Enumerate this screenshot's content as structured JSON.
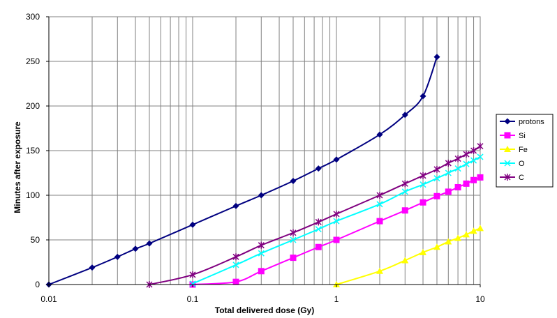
{
  "chart_data": {
    "type": "line",
    "title": "",
    "xlabel": "Total delivered dose (Gy)",
    "ylabel": "Minutes after exposure",
    "x_scale": "log",
    "xlim": [
      0.01,
      10
    ],
    "ylim": [
      0,
      300
    ],
    "x_ticks": [
      0.01,
      0.1,
      1,
      10
    ],
    "x_tick_labels": [
      "0.01",
      "0.1",
      "1",
      "10"
    ],
    "y_ticks": [
      0,
      50,
      100,
      150,
      200,
      250,
      300
    ],
    "y_tick_labels": [
      "0",
      "50",
      "100",
      "150",
      "200",
      "250",
      "300"
    ],
    "grid": true,
    "legend_position": "right",
    "series": [
      {
        "name": "protons",
        "color": "#000080",
        "marker": "diamond",
        "points": [
          [
            0.01,
            0
          ],
          [
            0.02,
            19
          ],
          [
            0.03,
            31
          ],
          [
            0.04,
            40
          ],
          [
            0.05,
            46
          ],
          [
            0.1,
            67
          ],
          [
            0.2,
            88
          ],
          [
            0.3,
            100
          ],
          [
            0.5,
            116
          ],
          [
            0.75,
            130
          ],
          [
            1,
            140
          ],
          [
            2,
            168
          ],
          [
            3,
            190
          ],
          [
            4,
            211
          ],
          [
            5,
            255
          ]
        ]
      },
      {
        "name": "Si",
        "color": "#ff00ff",
        "marker": "square",
        "points": [
          [
            0.1,
            0
          ],
          [
            0.2,
            3
          ],
          [
            0.3,
            15
          ],
          [
            0.5,
            30
          ],
          [
            0.75,
            42
          ],
          [
            1,
            50
          ],
          [
            2,
            71
          ],
          [
            3,
            83
          ],
          [
            4,
            92
          ],
          [
            5,
            99
          ],
          [
            6,
            104
          ],
          [
            7,
            109
          ],
          [
            8,
            113
          ],
          [
            9,
            117
          ],
          [
            10,
            120
          ]
        ]
      },
      {
        "name": "Fe",
        "color": "#ffff00",
        "marker": "triangle",
        "points": [
          [
            1,
            0
          ],
          [
            2,
            15
          ],
          [
            3,
            27
          ],
          [
            4,
            36
          ],
          [
            5,
            42
          ],
          [
            6,
            48
          ],
          [
            7,
            52
          ],
          [
            8,
            56
          ],
          [
            9,
            60
          ],
          [
            10,
            63
          ]
        ]
      },
      {
        "name": "O",
        "color": "#00ffff",
        "marker": "x",
        "points": [
          [
            0.1,
            1
          ],
          [
            0.2,
            22
          ],
          [
            0.3,
            35
          ],
          [
            0.5,
            50
          ],
          [
            0.75,
            62
          ],
          [
            1,
            71
          ],
          [
            2,
            90
          ],
          [
            3,
            104
          ],
          [
            4,
            112
          ],
          [
            5,
            119
          ],
          [
            6,
            125
          ],
          [
            7,
            130
          ],
          [
            8,
            135
          ],
          [
            9,
            139
          ],
          [
            10,
            143
          ]
        ]
      },
      {
        "name": "C",
        "color": "#800080",
        "marker": "star",
        "points": [
          [
            0.05,
            0
          ],
          [
            0.1,
            11
          ],
          [
            0.2,
            31
          ],
          [
            0.3,
            44
          ],
          [
            0.5,
            58
          ],
          [
            0.75,
            70
          ],
          [
            1,
            79
          ],
          [
            2,
            100
          ],
          [
            3,
            113
          ],
          [
            4,
            122
          ],
          [
            5,
            129
          ],
          [
            6,
            136
          ],
          [
            7,
            141
          ],
          [
            8,
            146
          ],
          [
            9,
            150
          ],
          [
            10,
            155
          ]
        ]
      }
    ]
  }
}
